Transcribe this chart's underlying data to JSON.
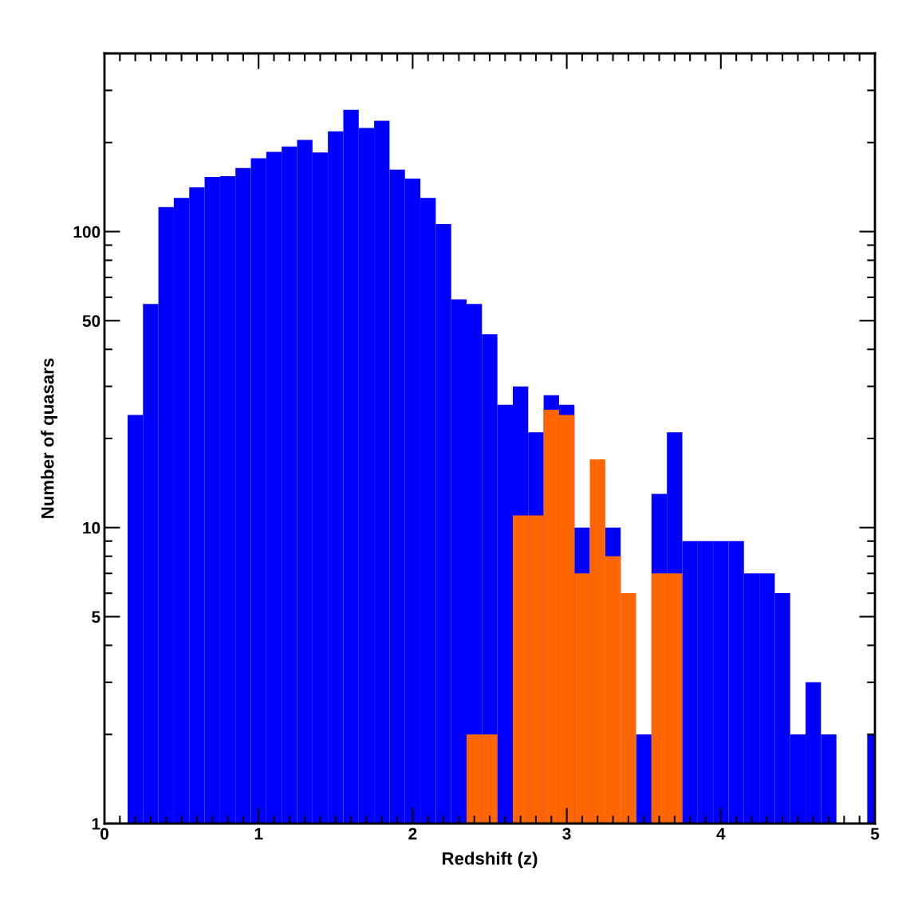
{
  "chart_data": {
    "type": "histogram",
    "xlabel": "Redshift (z)",
    "ylabel": "Number of quasars",
    "bins": [
      0.15,
      0.25,
      0.35,
      0.45,
      0.55,
      0.65,
      0.75,
      0.85,
      0.95,
      1.05,
      1.15,
      1.25,
      1.35,
      1.45,
      1.55,
      1.65,
      1.75,
      1.85,
      1.95,
      2.05,
      2.15,
      2.25,
      2.35,
      2.45,
      2.55,
      2.65,
      2.75,
      2.85,
      2.95,
      3.05,
      3.15,
      3.25,
      3.35,
      3.45,
      3.55,
      3.65,
      3.75,
      3.85,
      3.95,
      4.05,
      4.15,
      4.25,
      4.35,
      4.45,
      4.55,
      4.65,
      4.75,
      4.95,
      5.0
    ],
    "series": [
      {
        "color": "#0000ff",
        "values": [
          24,
          57,
          121,
          130,
          141,
          153,
          154,
          164,
          177,
          186,
          194,
          204,
          185,
          218,
          258,
          224,
          237,
          162,
          151,
          130,
          106,
          59,
          57,
          45,
          26,
          30,
          21,
          28,
          26,
          10,
          null,
          10,
          null,
          2,
          13,
          21,
          9,
          9,
          9,
          9,
          7,
          7,
          6,
          2,
          3,
          2,
          null,
          2
        ]
      },
      {
        "color": "#ff6600",
        "values": [
          null,
          null,
          null,
          null,
          null,
          null,
          null,
          null,
          null,
          null,
          null,
          null,
          null,
          null,
          null,
          null,
          null,
          null,
          null,
          null,
          null,
          null,
          2,
          2,
          null,
          11,
          11,
          25,
          24,
          7,
          17,
          8,
          6,
          null,
          7,
          7,
          null,
          null,
          null,
          null,
          null,
          null,
          null,
          null,
          null,
          null,
          null,
          null
        ]
      }
    ],
    "log": "y",
    "xlim": [
      0,
      5
    ],
    "ylim": [
      1,
      400
    ],
    "xticks": [
      0,
      1,
      2,
      3,
      4,
      5
    ],
    "yticks": [
      1,
      5,
      10,
      50,
      100
    ],
    "grid": false
  }
}
